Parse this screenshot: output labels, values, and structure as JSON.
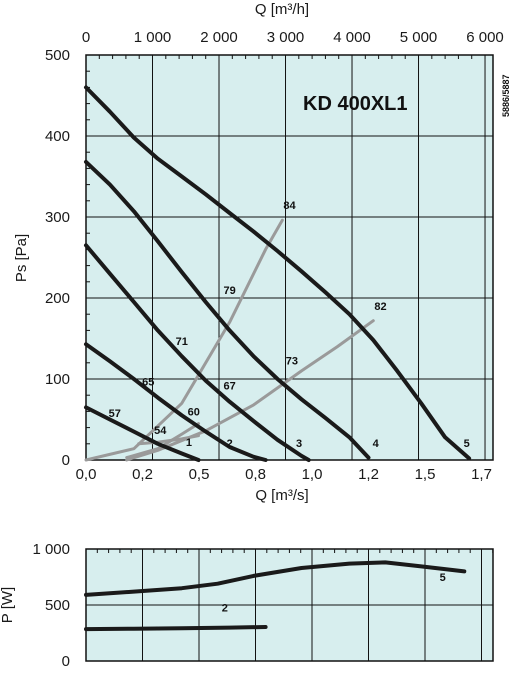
{
  "colors": {
    "plot_background": "#d7eeee",
    "grid": "#111111",
    "fan_curve": "#1a1a1a",
    "efficiency_curve": "#9a9a9a"
  },
  "model_label": "KD 400XL1",
  "code_label": "5886/5887",
  "chart_data": [
    {
      "type": "line",
      "name_printed": "",
      "xlabel": "Q [m³/s]",
      "ylabel": "Ps [Pa]",
      "x2label": "Q [m³/h]",
      "xlim": [
        0,
        1.7
      ],
      "ylim": [
        0,
        500
      ],
      "x_ticks": [
        "0,0",
        "0,2",
        "0,5",
        "0,8",
        "1,0",
        "1,2",
        "1,5",
        "1,7"
      ],
      "x_tick_values": [
        0,
        0.236,
        0.472,
        0.708,
        0.944,
        1.18,
        1.416,
        1.652
      ],
      "x2_ticks": [
        "0",
        "1 000",
        "2 000",
        "3 000",
        "4 000",
        "5 000",
        "6 000"
      ],
      "x2_tick_values": [
        0,
        1000,
        2000,
        3000,
        4000,
        5000,
        6000
      ],
      "y_ticks": [
        "0",
        "100",
        "200",
        "300",
        "400",
        "500"
      ],
      "y_tick_values": [
        0,
        100,
        200,
        300,
        400,
        500
      ],
      "grid": true,
      "fan_curves": [
        {
          "label": "1",
          "points": [
            [
              0,
              65
            ],
            [
              0.1,
              50
            ],
            [
              0.2,
              35
            ],
            [
              0.3,
              20
            ],
            [
              0.4,
              8
            ],
            [
              0.47,
              0
            ]
          ]
        },
        {
          "label": "2",
          "points": [
            [
              0,
              143
            ],
            [
              0.1,
              122
            ],
            [
              0.2,
              100
            ],
            [
              0.3,
              77
            ],
            [
              0.4,
              55
            ],
            [
              0.5,
              35
            ],
            [
              0.6,
              16
            ],
            [
              0.7,
              4
            ],
            [
              0.75,
              0
            ]
          ]
        },
        {
          "label": "3",
          "points": [
            [
              0,
              265
            ],
            [
              0.1,
              230
            ],
            [
              0.2,
              195
            ],
            [
              0.3,
              160
            ],
            [
              0.4,
              128
            ],
            [
              0.5,
              98
            ],
            [
              0.6,
              72
            ],
            [
              0.7,
              48
            ],
            [
              0.8,
              25
            ],
            [
              0.9,
              5
            ],
            [
              0.93,
              0
            ]
          ]
        },
        {
          "label": "4",
          "points": [
            [
              0,
              368
            ],
            [
              0.1,
              340
            ],
            [
              0.2,
              307
            ],
            [
              0.3,
              270
            ],
            [
              0.4,
              232
            ],
            [
              0.5,
              195
            ],
            [
              0.6,
              160
            ],
            [
              0.7,
              128
            ],
            [
              0.8,
              100
            ],
            [
              0.9,
              75
            ],
            [
              1.0,
              52
            ],
            [
              1.1,
              28
            ],
            [
              1.18,
              3
            ]
          ]
        },
        {
          "label": "5",
          "points": [
            [
              0,
              460
            ],
            [
              0.1,
              430
            ],
            [
              0.2,
              398
            ],
            [
              0.3,
              372
            ],
            [
              0.4,
              350
            ],
            [
              0.5,
              328
            ],
            [
              0.6,
              305
            ],
            [
              0.7,
              282
            ],
            [
              0.8,
              258
            ],
            [
              0.9,
              233
            ],
            [
              1.0,
              207
            ],
            [
              1.1,
              180
            ],
            [
              1.2,
              148
            ],
            [
              1.3,
              110
            ],
            [
              1.4,
              70
            ],
            [
              1.5,
              28
            ],
            [
              1.6,
              2
            ]
          ]
        }
      ],
      "efficiency_curves": [
        {
          "label": "54",
          "points": [
            [
              0.22,
              20
            ],
            [
              0.3,
              22
            ],
            [
              0.4,
              26
            ],
            [
              0.47,
              30
            ]
          ]
        },
        {
          "label": "60",
          "points": [
            [
              0.17,
              3
            ],
            [
              0.3,
              14
            ],
            [
              0.4,
              32
            ],
            [
              0.47,
              45
            ]
          ]
        },
        {
          "label": "73",
          "points": [
            [
              0.17,
              0
            ],
            [
              0.3,
              12
            ],
            [
              0.5,
              36
            ],
            [
              0.7,
              68
            ],
            [
              0.9,
              110
            ],
            [
              1.05,
              140
            ],
            [
              1.2,
              172
            ]
          ]
        },
        {
          "label": "79",
          "points": [
            [
              0.0,
              0
            ],
            [
              0.2,
              14
            ],
            [
              0.4,
              70
            ],
            [
              0.6,
              170
            ],
            [
              0.75,
              260
            ],
            [
              0.82,
              296
            ]
          ]
        }
      ],
      "curve_labels": [
        {
          "text": "84",
          "x": 0.85,
          "y": 310
        },
        {
          "text": "82",
          "x": 1.23,
          "y": 185
        },
        {
          "text": "79",
          "x": 0.6,
          "y": 205
        },
        {
          "text": "71",
          "x": 0.4,
          "y": 142
        },
        {
          "text": "73",
          "x": 0.86,
          "y": 118
        },
        {
          "text": "67",
          "x": 0.6,
          "y": 87
        },
        {
          "text": "65",
          "x": 0.26,
          "y": 92
        },
        {
          "text": "57",
          "x": 0.12,
          "y": 53
        },
        {
          "text": "54",
          "x": 0.31,
          "y": 32
        },
        {
          "text": "60",
          "x": 0.45,
          "y": 55
        },
        {
          "text": "1",
          "x": 0.43,
          "y": 17
        },
        {
          "text": "2",
          "x": 0.6,
          "y": 16
        },
        {
          "text": "3",
          "x": 0.89,
          "y": 16
        },
        {
          "text": "4",
          "x": 1.21,
          "y": 16
        },
        {
          "text": "5",
          "x": 1.59,
          "y": 16
        }
      ]
    },
    {
      "type": "line",
      "ylabel": "P [W]",
      "xlim": [
        0,
        1.7
      ],
      "ylim": [
        0,
        1000
      ],
      "y_ticks": [
        "0",
        "500",
        "1 000"
      ],
      "y_tick_values": [
        0,
        500,
        1000
      ],
      "grid": true,
      "series": [
        {
          "name": "5",
          "points": [
            [
              0,
              590
            ],
            [
              0.2,
              620
            ],
            [
              0.4,
              650
            ],
            [
              0.55,
              690
            ],
            [
              0.7,
              760
            ],
            [
              0.9,
              830
            ],
            [
              1.1,
              870
            ],
            [
              1.25,
              880
            ],
            [
              1.4,
              845
            ],
            [
              1.58,
              800
            ]
          ]
        },
        {
          "name": "2",
          "points": [
            [
              0,
              285
            ],
            [
              0.2,
              288
            ],
            [
              0.4,
              292
            ],
            [
              0.6,
              298
            ],
            [
              0.75,
              304
            ]
          ]
        }
      ],
      "curve_labels": [
        {
          "text": "5",
          "x": 1.49,
          "y": 715
        },
        {
          "text": "2",
          "x": 0.58,
          "y": 440
        }
      ]
    }
  ]
}
